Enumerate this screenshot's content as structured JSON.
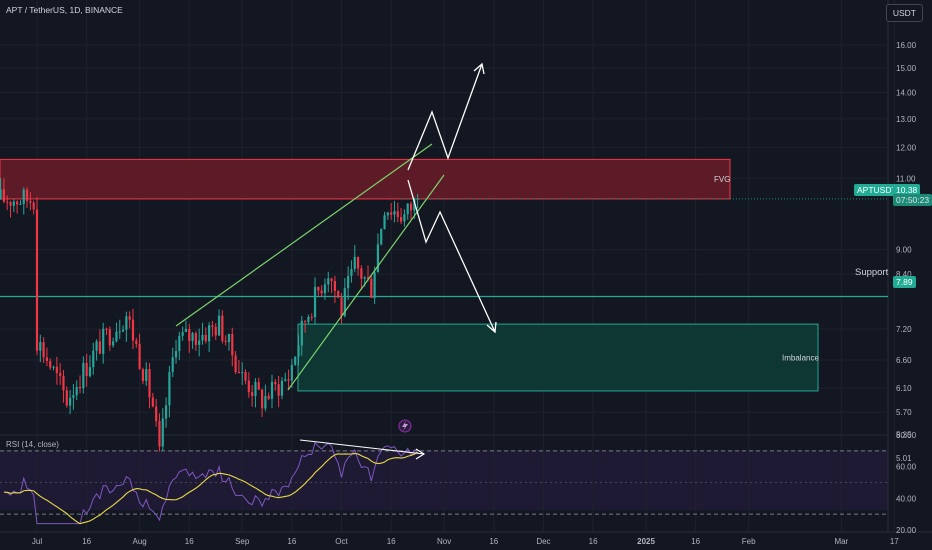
{
  "header": {
    "symbol_title": "APT / TetherUS, 1D, BINANCE",
    "currency": "USDT"
  },
  "price_tags": {
    "symbol": "APTUSDT",
    "last_price": "10.38",
    "countdown": "07:50:23"
  },
  "zones": {
    "fvg_label": "FVG",
    "imbalance_label": "Imbalance",
    "support_label": "Support",
    "support_value": "7.89"
  },
  "colors": {
    "background": "#131722",
    "bull": "#26a69a",
    "bear": "#f23645",
    "fvg_fill": "#6b1c28",
    "fvg_border": "#f23645",
    "imbalance_fill": "#0e3a35",
    "imbalance_border": "#22ab94",
    "trend_line": "#7bd36a",
    "support_line": "#22ab94",
    "rsi_line": "#7e57c2",
    "rsi_ma": "#e8d848"
  },
  "chart_data": [
    {
      "type": "candlestick",
      "title": "APT / TetherUS, 1D, BINANCE",
      "y_scale": "log",
      "ylim": [
        5.01,
        17.6
      ],
      "y_ticks": [
        "16.00",
        "15.00",
        "14.00",
        "13.00",
        "12.00",
        "11.00",
        "10.38",
        "9.00",
        "8.40",
        "7.89",
        "7.20",
        "6.60",
        "6.10",
        "5.70",
        "5.35",
        "5.01"
      ],
      "x_ticks": [
        "Jul",
        "16",
        "Aug",
        "16",
        "Sep",
        "16",
        "Oct",
        "16",
        "Nov",
        "16",
        "Dec",
        "16",
        "2025",
        "16",
        "Feb",
        "Mar",
        "17"
      ],
      "approx_closes": {
        "Jul-01": 7.0,
        "Jul-10": 5.9,
        "Jul-20": 6.9,
        "Jul-28": 7.5,
        "Aug-05": 5.8,
        "Aug-07": 5.05,
        "Aug-12": 7.0,
        "Aug-20": 7.1,
        "Aug-25": 7.3,
        "Sep-01": 6.3,
        "Sep-07": 5.9,
        "Sep-15": 6.3,
        "Sep-20": 7.4,
        "Sep-27": 8.5,
        "Oct-01": 7.6,
        "Oct-05": 8.6,
        "Oct-10": 8.1,
        "Oct-14": 10.2,
        "Oct-20": 9.9,
        "Oct-24": 10.38
      },
      "zones": [
        {
          "label": "FVG",
          "from": 10.38,
          "to": 11.6
        },
        {
          "label": "Imbalance",
          "from": 6.05,
          "to": 7.3
        }
      ],
      "support": 7.89,
      "projection_targets": [
        15.0,
        6.7
      ]
    },
    {
      "type": "line",
      "title": "RSI (14, close)",
      "ylim": [
        20,
        80
      ],
      "y_ticks": [
        "80.00",
        "60.00",
        "40.00",
        "20.00"
      ],
      "bands": [
        30,
        70
      ]
    }
  ]
}
